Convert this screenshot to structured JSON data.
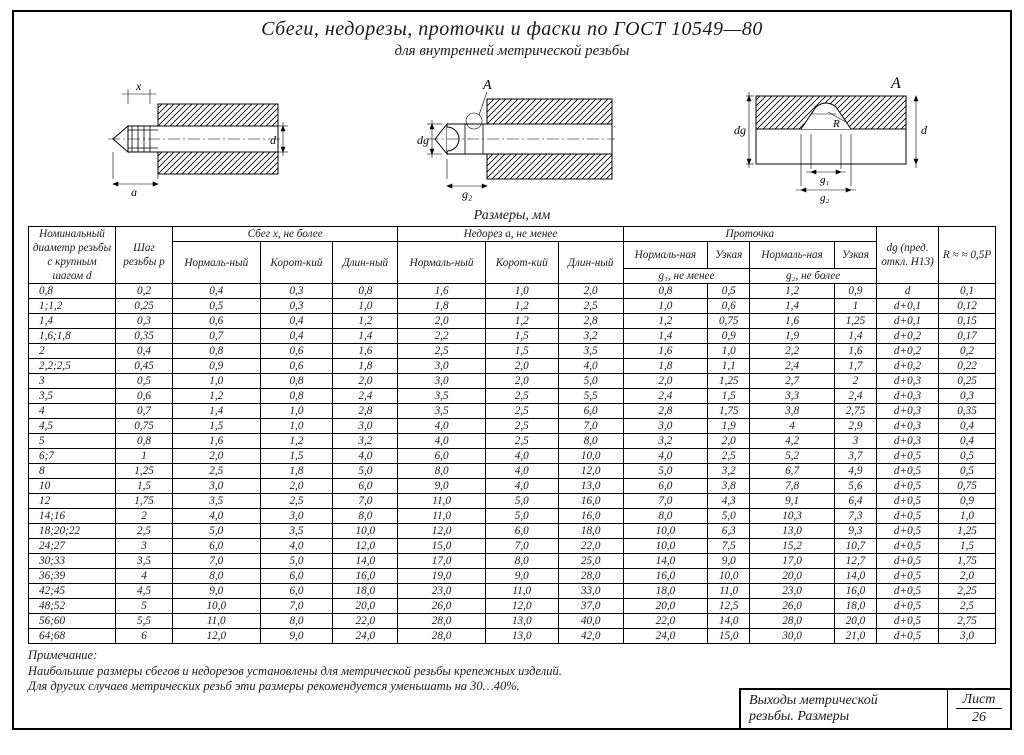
{
  "colors": {
    "fg": "#1a1a1a",
    "bg": "#ffffff",
    "hatch": "#000000"
  },
  "header": {
    "title": "Сбеги, недорезы, проточки и фаски по ГОСТ 10549—80",
    "subtitle": "для внутренней метрической резьбы"
  },
  "figures": {
    "label_a": "A",
    "dims": {
      "x": "x",
      "a": "a",
      "d": "d",
      "dg": "dg",
      "g1": "g₁",
      "g2": "g₂",
      "R": "R"
    }
  },
  "sizes_label": "Размеры, мм",
  "table": {
    "columns": {
      "d": "Номинальный диаметр резьбы с крупным шагом d",
      "p": "Шаг резьбы p",
      "sbeg": "Сбег x, не более",
      "nedorez": "Недорез a, не менее",
      "protochka": "Проточка",
      "norm": "Нормаль-ный",
      "short": "Корот-кий",
      "long": "Длин-ный",
      "narrow": "Узкая",
      "norm_f": "Нормаль-ная",
      "g1": "g₁, не менее",
      "g2": "g₂, не более",
      "dg": "dg (пред. откл. H13)",
      "r": "R ≈ ≈ 0,5P"
    },
    "rows": [
      [
        "0,8",
        "0,2",
        "0,4",
        "0,3",
        "0,8",
        "1,6",
        "1,0",
        "2,0",
        "0,8",
        "0,5",
        "1,2",
        "0,9",
        "d",
        "0,1"
      ],
      [
        "1;1,2",
        "0,25",
        "0,5",
        "0,3",
        "1,0",
        "1,8",
        "1,2",
        "2,5",
        "1,0",
        "0,6",
        "1,4",
        "1",
        "d+0,1",
        "0,12"
      ],
      [
        "1,4",
        "0,3",
        "0,6",
        "0,4",
        "1,2",
        "2,0",
        "1,2",
        "2,8",
        "1,2",
        "0,75",
        "1,6",
        "1,25",
        "d+0,1",
        "0,15"
      ],
      [
        "1,6;1,8",
        "0,35",
        "0,7",
        "0,4",
        "1,4",
        "2,2",
        "1,5",
        "3,2",
        "1,4",
        "0,9",
        "1,9",
        "1,4",
        "d+0,2",
        "0,17"
      ],
      [
        "2",
        "0,4",
        "0,8",
        "0,6",
        "1,6",
        "2,5",
        "1,5",
        "3,5",
        "1,6",
        "1,0",
        "2,2",
        "1,6",
        "d+0,2",
        "0,2"
      ],
      [
        "2,2;2,5",
        "0,45",
        "0,9",
        "0,6",
        "1,8",
        "3,0",
        "2,0",
        "4,0",
        "1,8",
        "1,1",
        "2,4",
        "1,7",
        "d+0,2",
        "0,22"
      ],
      [
        "3",
        "0,5",
        "1,0",
        "0,8",
        "2,0",
        "3,0",
        "2,0",
        "5,0",
        "2,0",
        "1,25",
        "2,7",
        "2",
        "d+0,3",
        "0,25"
      ],
      [
        "3,5",
        "0,6",
        "1,2",
        "0,8",
        "2,4",
        "3,5",
        "2,5",
        "5,5",
        "2,4",
        "1,5",
        "3,3",
        "2,4",
        "d+0,3",
        "0,3"
      ],
      [
        "4",
        "0,7",
        "1,4",
        "1,0",
        "2,8",
        "3,5",
        "2,5",
        "6,0",
        "2,8",
        "1,75",
        "3,8",
        "2,75",
        "d+0,3",
        "0,35"
      ],
      [
        "4,5",
        "0,75",
        "1,5",
        "1,0",
        "3,0",
        "4,0",
        "2,5",
        "7,0",
        "3,0",
        "1,9",
        "4",
        "2,9",
        "d+0,3",
        "0,4"
      ],
      [
        "5",
        "0,8",
        "1,6",
        "1,2",
        "3,2",
        "4,0",
        "2,5",
        "8,0",
        "3,2",
        "2,0",
        "4,2",
        "3",
        "d+0,3",
        "0,4"
      ],
      [
        "6;7",
        "1",
        "2,0",
        "1,5",
        "4,0",
        "6,0",
        "4,0",
        "10,0",
        "4,0",
        "2,5",
        "5,2",
        "3,7",
        "d+0,5",
        "0,5"
      ],
      [
        "8",
        "1,25",
        "2,5",
        "1,8",
        "5,0",
        "8,0",
        "4,0",
        "12,0",
        "5,0",
        "3,2",
        "6,7",
        "4,9",
        "d+0,5",
        "0,5"
      ],
      [
        "10",
        "1,5",
        "3,0",
        "2,0",
        "6,0",
        "9,0",
        "4,0",
        "13,0",
        "6,0",
        "3,8",
        "7,8",
        "5,6",
        "d+0,5",
        "0,75"
      ],
      [
        "12",
        "1,75",
        "3,5",
        "2,5",
        "7,0",
        "11,0",
        "5,0",
        "16,0",
        "7,0",
        "4,3",
        "9,1",
        "6,4",
        "d+0,5",
        "0,9"
      ],
      [
        "14;16",
        "2",
        "4,0",
        "3,0",
        "8,0",
        "11,0",
        "5,0",
        "16,0",
        "8,0",
        "5,0",
        "10,3",
        "7,3",
        "d+0,5",
        "1,0"
      ],
      [
        "18;20;22",
        "2,5",
        "5,0",
        "3,5",
        "10,0",
        "12,0",
        "6,0",
        "18,0",
        "10,0",
        "6,3",
        "13,0",
        "9,3",
        "d+0,5",
        "1,25"
      ],
      [
        "24;27",
        "3",
        "6,0",
        "4,0",
        "12,0",
        "15,0",
        "7,0",
        "22,0",
        "10,0",
        "7,5",
        "15,2",
        "10,7",
        "d+0,5",
        "1,5"
      ],
      [
        "30;33",
        "3,5",
        "7,0",
        "5,0",
        "14,0",
        "17,0",
        "8,0",
        "25,0",
        "14,0",
        "9,0",
        "17,0",
        "12,7",
        "d+0,5",
        "1,75"
      ],
      [
        "36;39",
        "4",
        "8,0",
        "6,0",
        "16,0",
        "19,0",
        "9,0",
        "28,0",
        "16,0",
        "10,0",
        "20,0",
        "14,0",
        "d+0,5",
        "2,0"
      ],
      [
        "42;45",
        "4,5",
        "9,0",
        "6,0",
        "18,0",
        "23,0",
        "11,0",
        "33,0",
        "18,0",
        "11,0",
        "23,0",
        "16,0",
        "d+0,5",
        "2,25"
      ],
      [
        "48;52",
        "5",
        "10,0",
        "7,0",
        "20,0",
        "26,0",
        "12,0",
        "37,0",
        "20,0",
        "12,5",
        "26,0",
        "18,0",
        "d+0,5",
        "2,5"
      ],
      [
        "56;60",
        "5,5",
        "11,0",
        "8,0",
        "22,0",
        "28,0",
        "13,0",
        "40,0",
        "22,0",
        "14,0",
        "28,0",
        "20,0",
        "d+0,5",
        "2,75"
      ],
      [
        "64;68",
        "6",
        "12,0",
        "9,0",
        "24,0",
        "28,0",
        "13,0",
        "42,0",
        "24,0",
        "15,0",
        "30,0",
        "21,0",
        "d+0,5",
        "3,0"
      ]
    ]
  },
  "notes": {
    "heading": "Примечание:",
    "line1": "Наибольшие размеры сбегов и недорезов установлены для метрической резьбы крепежных изделий.",
    "line2": "Для других случаев метрических резьб эти размеры рекомендуется уменьшать на 30…40%."
  },
  "title_block": {
    "title1": "Выходы метрической",
    "title2": "резьбы. Размеры",
    "sheet_lbl": "Лист",
    "sheet_no": "26"
  }
}
